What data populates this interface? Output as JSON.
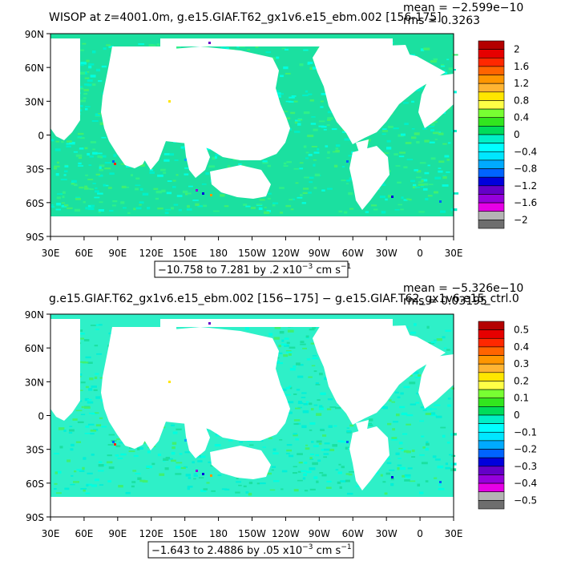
{
  "chart_data": [
    {
      "type": "heatmap",
      "title": "WISOP at z=4001.0m, g.e15.GIAF.T62_gx1v6.e15_ebm.002 [156-175]",
      "stats": {
        "mean": "mean = −2.599e−10",
        "rms": "rms = 0.3263"
      },
      "x_ticks": [
        "30E",
        "60E",
        "90E",
        "120E",
        "150E",
        "180",
        "150W",
        "120W",
        "90W",
        "60W",
        "30W",
        "0",
        "30E"
      ],
      "y_ticks": [
        "90N",
        "60N",
        "30N",
        "0",
        "30S",
        "60S",
        "90S"
      ],
      "range_label": "−10.758 to 7.281 by .2 x10",
      "range_exp": "−3",
      "range_unit": " cm s",
      "range_unit_exp": "−1",
      "colorbar": {
        "labels": [
          "2",
          "1.6",
          "1.2",
          "0.8",
          "0.4",
          "0",
          "−0.4",
          "−0.8",
          "−1.2",
          "−1.6",
          "−2"
        ],
        "values": [
          2,
          1.6,
          1.2,
          0.8,
          0.4,
          0,
          -0.4,
          -0.8,
          -1.2,
          -1.6,
          -2
        ]
      }
    },
    {
      "type": "heatmap",
      "title": "g.e15.GIAF.T62_gx1v6.e15_ebm.002 [156−175] − g.e15.GIAF.T62_gx1v6.e15_ctrl.0",
      "stats": {
        "mean": "mean = −5.326e−10",
        "rms": "rms = 0.03195"
      },
      "x_ticks": [
        "30E",
        "60E",
        "90E",
        "120E",
        "150E",
        "180",
        "150W",
        "120W",
        "90W",
        "60W",
        "30W",
        "0",
        "30E"
      ],
      "y_ticks": [
        "90N",
        "60N",
        "30N",
        "0",
        "30S",
        "60S",
        "90S"
      ],
      "range_label": "−1.643 to 2.4886 by .05 x10",
      "range_exp": "−3",
      "range_unit": " cm s",
      "range_unit_exp": "−1",
      "colorbar": {
        "labels": [
          "0.5",
          "0.4",
          "0.3",
          "0.2",
          "0.1",
          "0",
          "−0.1",
          "−0.2",
          "−0.3",
          "−0.4",
          "−0.5"
        ],
        "values": [
          0.5,
          0.4,
          0.3,
          0.2,
          0.1,
          0,
          -0.1,
          -0.2,
          -0.3,
          -0.4,
          -0.5
        ]
      }
    }
  ],
  "colors": {
    "ocean": "#1be0a0",
    "ocean_light": "#00ffe0",
    "ocean_mid": "#2ef08a",
    "land": "#ffffff",
    "colorbar_palette": [
      "#b40000",
      "#e60000",
      "#ff2800",
      "#ff6400",
      "#ff9600",
      "#ffb432",
      "#ffe600",
      "#ffff46",
      "#78ff32",
      "#32e61e",
      "#00dc5a",
      "#00f0c8",
      "#00ffff",
      "#00e6ff",
      "#00aaff",
      "#0064ff",
      "#0000dc",
      "#6400c8",
      "#9600dc",
      "#e600e6",
      "#b4b4b4",
      "#6e6e6e"
    ]
  }
}
